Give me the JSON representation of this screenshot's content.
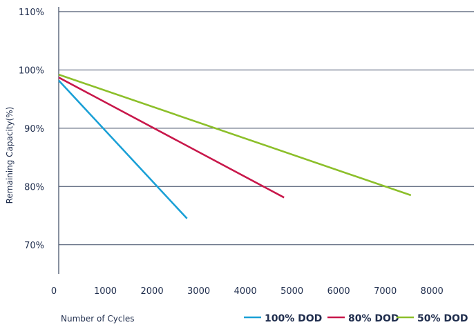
{
  "chart_data": {
    "type": "line",
    "title": "",
    "xlabel": "Number of Cycles",
    "ylabel": "Remaining Capacity(%)",
    "xlim": [
      0,
      8900
    ],
    "ylim": [
      65,
      112
    ],
    "x_ticks": [
      0,
      1000,
      2000,
      3000,
      4000,
      5000,
      6000,
      7000,
      8000
    ],
    "x_tick_labels": [
      "0",
      "1000",
      "2000",
      "3000",
      "4000",
      "5000",
      "6000",
      "7000",
      "8000"
    ],
    "y_ticks": [
      70,
      80,
      90,
      100,
      110
    ],
    "y_tick_labels": [
      "70%",
      "80%",
      "90%",
      "100%",
      "110%"
    ],
    "grid": "horizontal",
    "legend_position": "bottom-right",
    "series": [
      {
        "name": "100% DOD",
        "color": "#1aa0d6",
        "points": [
          [
            0,
            98.2
          ],
          [
            2750,
            74.5
          ]
        ]
      },
      {
        "name": "80% DOD",
        "color": "#c8174a",
        "points": [
          [
            0,
            98.7
          ],
          [
            4830,
            78.1
          ]
        ]
      },
      {
        "name": "50% DOD",
        "color": "#8cbf2a",
        "points": [
          [
            0,
            99.2
          ],
          [
            7550,
            78.5
          ]
        ]
      }
    ]
  }
}
